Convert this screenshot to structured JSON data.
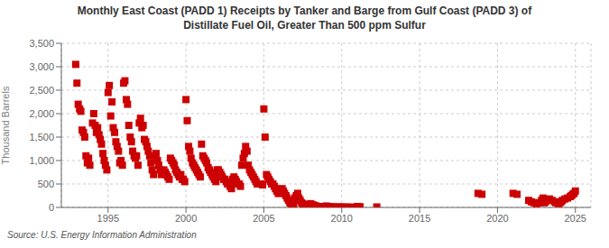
{
  "chart_data": {
    "type": "scatter",
    "title": "Monthly East Coast (PADD 1) Receipts by Tanker and Barge from Gulf Coast (PADD 3) of\nDistillate Fuel Oil, Greater Than 500 ppm Sulfur",
    "ylabel": "Thousand Barrels",
    "annotations": [
      "Source: U.S. Energy Information Administration"
    ],
    "color": "#cc0000",
    "marker": "square",
    "grid": true,
    "xlim": [
      1992.0,
      2026.0
    ],
    "ylim": [
      0,
      3500
    ],
    "xticks": [
      1995,
      2000,
      2005,
      2010,
      2015,
      2020,
      2025
    ],
    "yticks": [
      0,
      500,
      {
        "value": 1000,
        "label": "1,000"
      },
      {
        "value": 1500,
        "label": "1,500"
      },
      {
        "value": 2000,
        "label": "2,000"
      },
      {
        "value": 2500,
        "label": "2,500"
      },
      {
        "value": 3000,
        "label": "3,000"
      },
      {
        "value": 3500,
        "label": "3,500"
      }
    ],
    "x": [
      1992.92,
      1993.0,
      1993.08,
      1993.17,
      1993.25,
      1993.33,
      1993.42,
      1993.5,
      1993.58,
      1993.67,
      1993.75,
      1993.83,
      1994.0,
      1994.08,
      1994.17,
      1994.25,
      1994.33,
      1994.42,
      1994.5,
      1994.58,
      1994.67,
      1994.75,
      1994.83,
      1994.92,
      1995.0,
      1995.08,
      1995.17,
      1995.25,
      1995.33,
      1995.42,
      1995.5,
      1995.58,
      1995.67,
      1995.75,
      1995.83,
      1995.92,
      1996.0,
      1996.08,
      1996.17,
      1996.25,
      1996.33,
      1996.42,
      1996.5,
      1996.58,
      1996.67,
      1996.75,
      1996.83,
      1996.92,
      1997.0,
      1997.08,
      1997.17,
      1997.25,
      1997.33,
      1997.42,
      1997.5,
      1997.58,
      1997.67,
      1997.75,
      1997.83,
      1997.92,
      1998.0,
      1998.08,
      1998.17,
      1998.25,
      1998.33,
      1998.42,
      1998.5,
      1998.58,
      1998.67,
      1998.75,
      1998.83,
      1998.92,
      1999.0,
      1999.08,
      1999.17,
      1999.25,
      1999.33,
      1999.42,
      1999.5,
      1999.58,
      1999.67,
      1999.75,
      1999.83,
      1999.92,
      2000.0,
      2000.08,
      2000.17,
      2000.25,
      2000.33,
      2000.42,
      2000.5,
      2000.58,
      2000.67,
      2000.75,
      2000.83,
      2000.92,
      2001.0,
      2001.08,
      2001.17,
      2001.25,
      2001.33,
      2001.42,
      2001.5,
      2001.58,
      2001.67,
      2001.75,
      2001.83,
      2001.92,
      2002.0,
      2002.08,
      2002.17,
      2002.25,
      2002.33,
      2002.42,
      2002.5,
      2002.58,
      2002.67,
      2002.75,
      2002.83,
      2002.92,
      2003.0,
      2003.08,
      2003.17,
      2003.25,
      2003.33,
      2003.42,
      2003.5,
      2003.58,
      2003.67,
      2003.75,
      2003.83,
      2003.92,
      2004.0,
      2004.08,
      2004.17,
      2004.25,
      2004.33,
      2004.42,
      2004.5,
      2004.58,
      2004.67,
      2004.75,
      2004.83,
      2004.92,
      2005.0,
      2005.08,
      2005.17,
      2005.25,
      2005.33,
      2005.42,
      2005.5,
      2005.58,
      2005.67,
      2005.75,
      2005.83,
      2005.92,
      2006.0,
      2006.08,
      2006.17,
      2006.25,
      2006.33,
      2006.42,
      2006.5,
      2006.58,
      2006.67,
      2006.75,
      2006.83,
      2006.92,
      2007.0,
      2007.08,
      2007.17,
      2007.25,
      2007.33,
      2007.42,
      2007.5,
      2007.58,
      2007.67,
      2007.75,
      2007.83,
      2007.92,
      2008.0,
      2008.08,
      2008.17,
      2008.25,
      2008.33,
      2008.42,
      2008.5,
      2008.58,
      2008.67,
      2008.75,
      2008.83,
      2008.92,
      2009.0,
      2009.08,
      2009.17,
      2009.25,
      2009.33,
      2009.42,
      2009.5,
      2009.58,
      2009.67,
      2009.75,
      2009.83,
      2009.92,
      2010.0,
      2010.08,
      2010.17,
      2010.33,
      2010.5,
      2010.58,
      2011.0,
      2011.17,
      2012.25,
      2018.75,
      2019.0,
      2021.0,
      2021.25,
      2022.0,
      2022.17,
      2022.33,
      2022.5,
      2022.67,
      2022.83,
      2022.92,
      2023.0,
      2023.08,
      2023.17,
      2023.33,
      2023.5,
      2023.67,
      2023.75,
      2023.92,
      2024.0,
      2024.08,
      2024.17,
      2024.33,
      2024.5,
      2024.67,
      2024.75,
      2024.83,
      2024.92,
      2025.0
    ],
    "values": [
      3050,
      2650,
      2200,
      2100,
      2050,
      1650,
      1600,
      1500,
      1100,
      950,
      1050,
      900,
      1800,
      2000,
      1750,
      1600,
      1700,
      1550,
      1450,
      1350,
      1150,
      1000,
      900,
      800,
      2450,
      2600,
      1950,
      2250,
      1700,
      1600,
      1400,
      1300,
      1200,
      950,
      1000,
      900,
      2650,
      2700,
      2300,
      2200,
      1750,
      1500,
      1400,
      1200,
      1100,
      1050,
      1100,
      900,
      1800,
      1900,
      1700,
      1750,
      1450,
      1400,
      1300,
      1200,
      1100,
      950,
      800,
      700,
      1100,
      1150,
      1000,
      900,
      800,
      700,
      750,
      800,
      750,
      700,
      650,
      600,
      1050,
      1000,
      950,
      900,
      800,
      750,
      700,
      650,
      700,
      600,
      600,
      550,
      2300,
      1850,
      1300,
      1200,
      1050,
      950,
      900,
      850,
      800,
      750,
      700,
      650,
      1350,
      1100,
      1050,
      1000,
      950,
      850,
      800,
      750,
      700,
      650,
      600,
      550,
      800,
      800,
      750,
      700,
      650,
      600,
      600,
      550,
      500,
      500,
      450,
      400,
      600,
      650,
      600,
      550,
      500,
      500,
      450,
      900,
      1050,
      1150,
      1300,
      1200,
      900,
      800,
      750,
      700,
      650,
      600,
      550,
      500,
      500,
      500,
      500,
      480,
      2100,
      1500,
      700,
      650,
      600,
      550,
      500,
      500,
      450,
      400,
      350,
      300,
      300,
      350,
      400,
      350,
      300,
      250,
      200,
      150,
      100,
      80,
      60,
      50,
      200,
      250,
      300,
      200,
      150,
      100,
      80,
      60,
      50,
      40,
      30,
      20,
      80,
      60,
      50,
      40,
      30,
      20,
      15,
      10,
      10,
      5,
      5,
      5,
      30,
      20,
      15,
      10,
      10,
      5,
      5,
      5,
      5,
      5,
      5,
      5,
      5,
      5,
      5,
      5,
      5,
      5,
      20,
      15,
      10,
      300,
      280,
      300,
      280,
      150,
      120,
      100,
      80,
      100,
      150,
      200,
      100,
      120,
      150,
      180,
      150,
      120,
      100,
      80,
      100,
      120,
      150,
      180,
      200,
      230,
      250,
      280,
      300,
      350
    ]
  }
}
